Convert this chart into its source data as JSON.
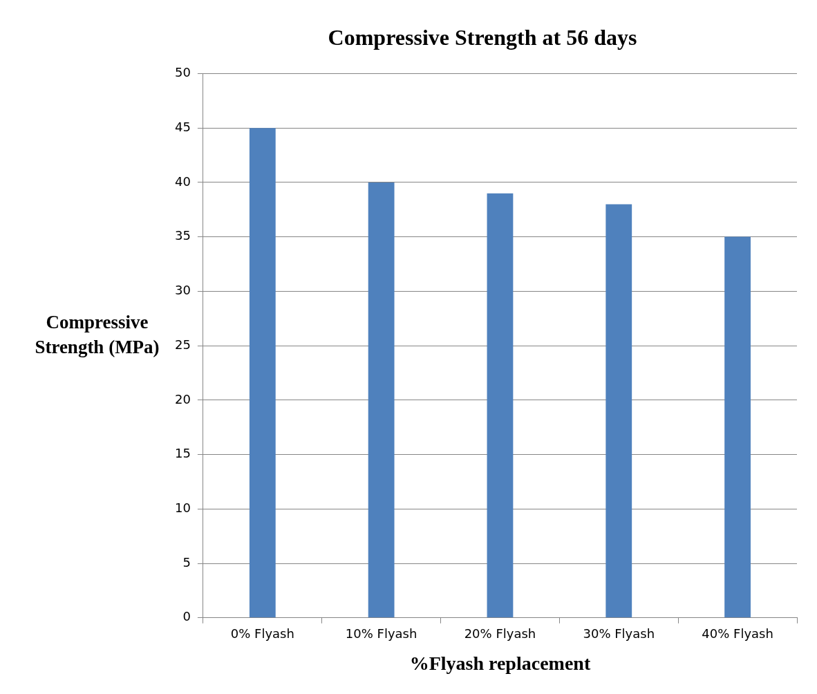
{
  "chart_data": {
    "type": "bar",
    "title": "Compressive Strength at 56 days",
    "xlabel": "%Flyash replacement",
    "ylabel": "Compressive Strength (MPa)",
    "categories": [
      "0% Flyash",
      "10% Flyash",
      "20% Flyash",
      "30% Flyash",
      "40% Flyash"
    ],
    "values": [
      45,
      40,
      39,
      38,
      35
    ],
    "color": "#4f81bd",
    "ylim": [
      0,
      50
    ],
    "yticks": [
      0,
      5,
      10,
      15,
      20,
      25,
      30,
      35,
      40,
      45,
      50
    ],
    "grid": "y",
    "legend": false
  }
}
